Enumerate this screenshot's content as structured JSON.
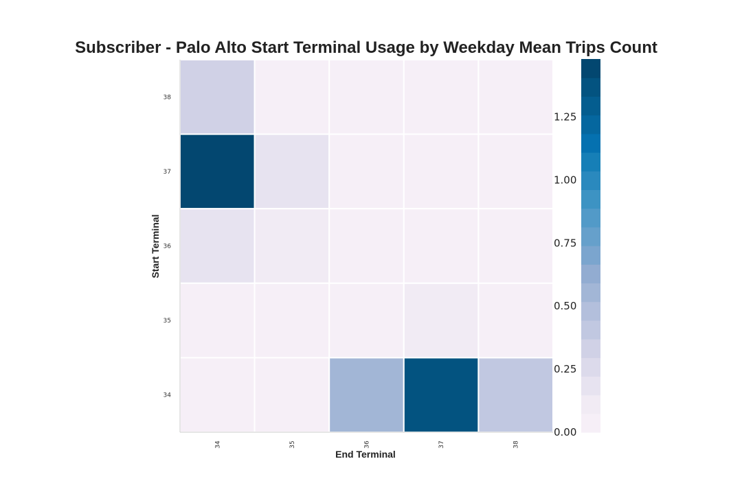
{
  "chart_data": {
    "type": "heatmap",
    "title": "Subscriber - Palo Alto Start Terminal Usage by Weekday Mean Trips Count",
    "xlabel": "End Terminal",
    "ylabel": "Start Terminal",
    "x_categories": [
      "34",
      "35",
      "36",
      "37",
      "38"
    ],
    "y_categories": [
      "38",
      "37",
      "36",
      "35",
      "34"
    ],
    "values": [
      [
        0.3,
        0.01,
        0.05,
        0.01,
        0.02
      ],
      [
        1.43,
        0.19,
        0.05,
        0.01,
        0.02
      ],
      [
        0.16,
        0.1,
        0.01,
        0.05,
        0.06
      ],
      [
        0.01,
        0.01,
        0.05,
        0.12,
        0.01
      ],
      [
        0.05,
        0.01,
        0.55,
        1.37,
        0.43
      ]
    ],
    "colorbar": {
      "ticks": [
        "0.00",
        "0.25",
        "0.50",
        "0.75",
        "1.00",
        "1.25"
      ],
      "tick_values": [
        0.0,
        0.25,
        0.5,
        0.75,
        1.0,
        1.25
      ],
      "vmin": 0.0,
      "vmax": 1.48,
      "levels": 20
    },
    "colors": [
      "#f6eff7",
      "#f1ebf4",
      "#e7e3f0",
      "#dcdaeb",
      "#d0d1e6",
      "#c1c8e1",
      "#b3bfdc",
      "#a2b6d6",
      "#92acd1",
      "#7ba5ce",
      "#66a0cb",
      "#529ac8",
      "#3d93c3",
      "#2a89be",
      "#167fb7",
      "#0571b0",
      "#05679f",
      "#045d8f",
      "#035380",
      "#034770"
    ]
  }
}
